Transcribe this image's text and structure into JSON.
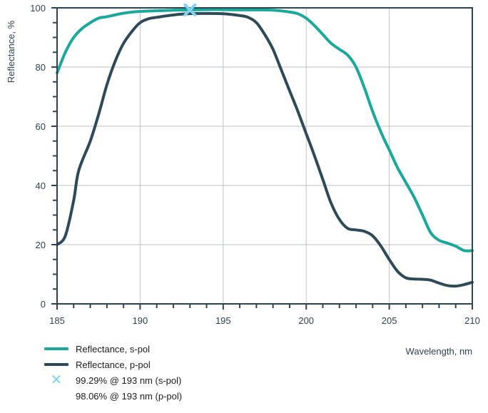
{
  "chart_data": {
    "type": "line",
    "xlabel": "Wavelength, nm",
    "ylabel": "Reflectance, %",
    "xlim": [
      185,
      210
    ],
    "ylim": [
      0,
      100
    ],
    "x_ticks": [
      185,
      190,
      195,
      200,
      205,
      210
    ],
    "y_ticks": [
      0,
      20,
      40,
      60,
      80,
      100
    ],
    "grid": true,
    "legend_position": "bottom-left",
    "series": [
      {
        "name": "Reflectance, s-pol",
        "color": "#1aa89a",
        "points": [
          [
            185,
            78
          ],
          [
            185.5,
            85
          ],
          [
            186,
            90
          ],
          [
            186.5,
            93
          ],
          [
            187,
            95
          ],
          [
            187.5,
            96.5
          ],
          [
            188,
            97
          ],
          [
            189,
            98.2
          ],
          [
            190,
            98.8
          ],
          [
            191,
            99
          ],
          [
            192,
            99.2
          ],
          [
            193,
            99.29
          ],
          [
            194,
            99.4
          ],
          [
            195,
            99.4
          ],
          [
            196,
            99.3
          ],
          [
            197,
            99.3
          ],
          [
            198,
            99.2
          ],
          [
            199,
            98.6
          ],
          [
            199.5,
            98
          ],
          [
            200,
            96.5
          ],
          [
            200.5,
            94
          ],
          [
            201,
            91
          ],
          [
            201.5,
            88
          ],
          [
            202,
            86
          ],
          [
            202.5,
            84
          ],
          [
            203,
            80
          ],
          [
            203.5,
            73
          ],
          [
            204,
            65
          ],
          [
            204.5,
            58
          ],
          [
            205,
            52
          ],
          [
            205.5,
            46
          ],
          [
            206,
            41
          ],
          [
            206.5,
            36
          ],
          [
            207,
            30
          ],
          [
            207.5,
            24
          ],
          [
            208,
            21.5
          ],
          [
            208.5,
            20.5
          ],
          [
            209,
            19.5
          ],
          [
            209.5,
            18
          ],
          [
            210,
            18
          ]
        ]
      },
      {
        "name": "Reflectance, p-pol",
        "color": "#2e4a56",
        "points": [
          [
            185,
            20
          ],
          [
            185.5,
            23
          ],
          [
            186,
            35
          ],
          [
            186.3,
            45
          ],
          [
            187,
            55
          ],
          [
            187.5,
            64
          ],
          [
            188,
            74
          ],
          [
            188.5,
            82
          ],
          [
            189,
            88
          ],
          [
            189.5,
            92
          ],
          [
            190,
            95
          ],
          [
            190.5,
            96.3
          ],
          [
            191,
            96.8
          ],
          [
            192,
            97.6
          ],
          [
            193,
            98.06
          ],
          [
            194,
            98.1
          ],
          [
            195,
            98
          ],
          [
            196,
            97.4
          ],
          [
            196.5,
            96.8
          ],
          [
            197,
            95
          ],
          [
            197.5,
            91
          ],
          [
            198,
            86
          ],
          [
            198.5,
            79
          ],
          [
            199,
            72
          ],
          [
            199.5,
            65
          ],
          [
            200,
            57.5
          ],
          [
            200.5,
            50
          ],
          [
            201,
            42
          ],
          [
            201.5,
            34
          ],
          [
            202,
            28.5
          ],
          [
            202.5,
            25.5
          ],
          [
            203,
            25
          ],
          [
            203.5,
            24.5
          ],
          [
            204,
            23
          ],
          [
            204.5,
            19.5
          ],
          [
            205,
            15
          ],
          [
            205.5,
            11
          ],
          [
            206,
            8.8
          ],
          [
            206.5,
            8.4
          ],
          [
            207,
            8.3
          ],
          [
            207.5,
            8
          ],
          [
            208,
            7
          ],
          [
            208.5,
            6.2
          ],
          [
            209,
            6
          ],
          [
            209.5,
            6.5
          ],
          [
            210,
            7.3
          ]
        ]
      }
    ],
    "markers": [
      {
        "x": 193,
        "y": 99.29,
        "symbol": "x",
        "color": "#7fd3f0"
      }
    ],
    "legend": {
      "entry_s": "Reflectance, s-pol",
      "entry_p": "Reflectance, p-pol",
      "annotation_s": "99.29% @ 193 nm (s-pol)",
      "annotation_p": "98.06% @ 193 nm (p-pol)"
    }
  }
}
